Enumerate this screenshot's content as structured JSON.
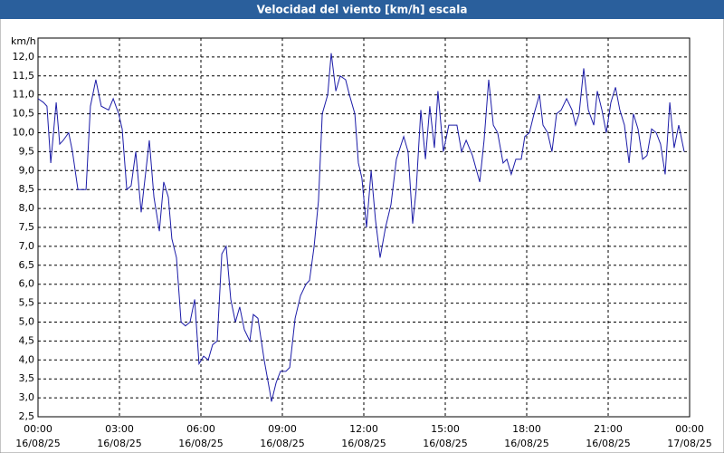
{
  "chart_data": {
    "type": "line",
    "title": "Velocidad del viento [km/h] escala",
    "y_label": "km/h",
    "color": "#1c1ca8",
    "grid": true,
    "ylim": [
      2.5,
      12.5
    ],
    "yticks": [
      {
        "value": 2.5,
        "label": "2,5"
      },
      {
        "value": 3,
        "label": "3,0"
      },
      {
        "value": 3.5,
        "label": "3,5"
      },
      {
        "value": 4,
        "label": "4,0"
      },
      {
        "value": 4.5,
        "label": "4,5"
      },
      {
        "value": 5,
        "label": "5,0"
      },
      {
        "value": 5.5,
        "label": "5,5"
      },
      {
        "value": 6,
        "label": "6,0"
      },
      {
        "value": 6.5,
        "label": "6,5"
      },
      {
        "value": 7,
        "label": "7,0"
      },
      {
        "value": 7.5,
        "label": "7,5"
      },
      {
        "value": 8,
        "label": "8,0"
      },
      {
        "value": 8.5,
        "label": "8,5"
      },
      {
        "value": 9,
        "label": "9,0"
      },
      {
        "value": 9.5,
        "label": "9,5"
      },
      {
        "value": 10,
        "label": "10,0"
      },
      {
        "value": 10.5,
        "label": "10,5"
      },
      {
        "value": 11,
        "label": "11,0"
      },
      {
        "value": 11.5,
        "label": "11,5"
      },
      {
        "value": 12,
        "label": "12,0"
      }
    ],
    "xlim": [
      0,
      24
    ],
    "xticks": [
      {
        "value": 0,
        "label": "00:00",
        "date": "16/08/25"
      },
      {
        "value": 3,
        "label": "03:00",
        "date": "16/08/25"
      },
      {
        "value": 6,
        "label": "06:00",
        "date": "16/08/25"
      },
      {
        "value": 9,
        "label": "09:00",
        "date": "16/08/25"
      },
      {
        "value": 12,
        "label": "12:00",
        "date": "16/08/25"
      },
      {
        "value": 15,
        "label": "15:00",
        "date": "16/08/25"
      },
      {
        "value": 18,
        "label": "18:00",
        "date": "16/08/25"
      },
      {
        "value": 21,
        "label": "21:00",
        "date": "16/08/25"
      },
      {
        "value": 24,
        "label": "00:00",
        "date": "17/08/25"
      }
    ],
    "x": [
      0,
      0.2,
      0.33,
      0.47,
      0.67,
      0.8,
      0.93,
      1.13,
      1.27,
      1.47,
      1.77,
      1.93,
      2.13,
      2.33,
      2.6,
      2.77,
      2.97,
      3.1,
      3.27,
      3.43,
      3.6,
      3.8,
      4.1,
      4.27,
      4.47,
      4.63,
      4.8,
      4.93,
      5.1,
      5.27,
      5.43,
      5.6,
      5.77,
      5.93,
      6.1,
      6.27,
      6.43,
      6.6,
      6.77,
      6.93,
      7.1,
      7.27,
      7.43,
      7.6,
      7.8,
      7.93,
      8.1,
      8.33,
      8.53,
      8.6,
      8.77,
      8.93,
      9.13,
      9.27,
      9.47,
      9.67,
      9.87,
      10,
      10.17,
      10.33,
      10.47,
      10.67,
      10.8,
      10.97,
      11.13,
      11.33,
      11.47,
      11.67,
      11.8,
      11.93,
      12.1,
      12.27,
      12.43,
      12.6,
      12.8,
      13,
      13.2,
      13.47,
      13.63,
      13.8,
      13.93,
      14.1,
      14.27,
      14.43,
      14.6,
      14.73,
      14.93,
      15.13,
      15.43,
      15.6,
      15.77,
      16,
      16.27,
      16.43,
      16.6,
      16.77,
      16.93,
      17.13,
      17.27,
      17.43,
      17.6,
      17.8,
      17.93,
      18.1,
      18.27,
      18.47,
      18.6,
      18.77,
      18.93,
      19.1,
      19.27,
      19.47,
      19.67,
      19.8,
      19.93,
      20.1,
      20.27,
      20.47,
      20.6,
      20.77,
      20.93,
      21.1,
      21.27,
      21.43,
      21.6,
      21.77,
      21.93,
      22.1,
      22.27,
      22.43,
      22.6,
      22.77,
      22.93,
      23.1,
      23.27,
      23.43,
      23.6,
      23.8
    ],
    "values": [
      10.9,
      10.8,
      10.7,
      9.2,
      10.8,
      9.7,
      9.8,
      10.0,
      9.5,
      8.5,
      8.5,
      10.7,
      11.4,
      10.7,
      10.6,
      10.9,
      10.5,
      10.1,
      8.5,
      8.6,
      9.5,
      7.9,
      9.8,
      8.3,
      7.4,
      8.7,
      8.3,
      7.2,
      6.7,
      5.0,
      4.9,
      5.0,
      5.6,
      3.9,
      4.1,
      4.0,
      4.4,
      4.5,
      6.8,
      7.0,
      5.6,
      5.0,
      5.4,
      4.8,
      4.5,
      5.2,
      5.1,
      4.0,
      3.2,
      2.9,
      3.4,
      3.7,
      3.7,
      3.8,
      5.1,
      5.7,
      6.0,
      6.1,
      7.0,
      8.2,
      10.5,
      11.0,
      12.1,
      11.1,
      11.5,
      11.4,
      11.0,
      10.5,
      9.2,
      8.8,
      7.5,
      9.0,
      7.7,
      6.7,
      7.5,
      8.1,
      9.3,
      9.9,
      9.5,
      7.6,
      8.5,
      10.6,
      9.3,
      10.7,
      9.6,
      11.1,
      9.5,
      10.2,
      10.2,
      9.5,
      9.8,
      9.4,
      8.7,
      9.8,
      11.4,
      10.2,
      10.0,
      9.2,
      9.3,
      8.9,
      9.3,
      9.3,
      9.9,
      10.0,
      10.5,
      11.0,
      10.2,
      10.0,
      9.5,
      10.5,
      10.6,
      10.9,
      10.6,
      10.2,
      10.5,
      11.7,
      10.6,
      10.2,
      11.1,
      10.6,
      10.0,
      10.8,
      11.2,
      10.6,
      10.2,
      9.2,
      10.5,
      10.1,
      9.3,
      9.4,
      10.1,
      10.0,
      9.7,
      8.9,
      10.8,
      9.6,
      10.2,
      9.5
    ]
  }
}
